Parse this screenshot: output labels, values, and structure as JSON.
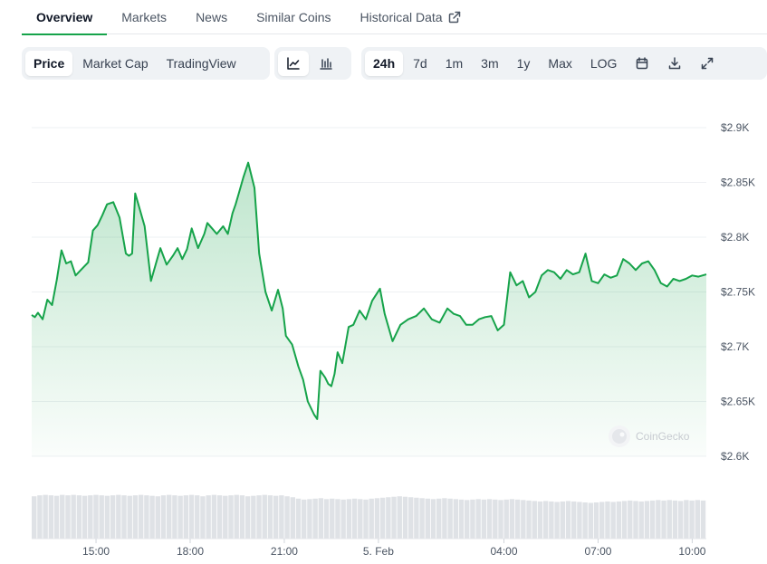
{
  "tabs": [
    {
      "label": "Overview",
      "active": true
    },
    {
      "label": "Markets"
    },
    {
      "label": "News"
    },
    {
      "label": "Similar Coins"
    },
    {
      "label": "Historical Data",
      "external_icon": "external-link-icon"
    }
  ],
  "toolbar": {
    "metric": [
      {
        "label": "Price",
        "active": true
      },
      {
        "label": "Market Cap"
      },
      {
        "label": "TradingView"
      }
    ],
    "chart_style": [
      {
        "icon": "line-chart-icon",
        "active": true
      },
      {
        "icon": "candlestick-chart-icon"
      }
    ],
    "ranges": [
      {
        "label": "24h",
        "active": true
      },
      {
        "label": "7d"
      },
      {
        "label": "1m"
      },
      {
        "label": "3m"
      },
      {
        "label": "1y"
      },
      {
        "label": "Max"
      },
      {
        "label": "LOG"
      }
    ],
    "actions": [
      {
        "icon": "calendar-icon"
      },
      {
        "icon": "download-icon"
      },
      {
        "icon": "fullscreen-icon"
      }
    ]
  },
  "watermark": "CoinGecko",
  "colors": {
    "line": "#16a34a",
    "fill_top": "#16a34a",
    "volume": "#d1d5db",
    "grid": "#eef0f3",
    "tab_underline": "#16a34a"
  },
  "chart_data": {
    "type": "line",
    "title": "",
    "xlabel": "",
    "ylabel": "",
    "ylim": [
      2.6,
      2.9
    ],
    "xlim": [
      12.95,
      34.45
    ],
    "y_tick_values": [
      2.6,
      2.65,
      2.7,
      2.75,
      2.8,
      2.85,
      2.9
    ],
    "y_tick_labels": [
      "$2.6K",
      "$2.65K",
      "$2.7K",
      "$2.75K",
      "$2.8K",
      "$2.85K",
      "$2.9K"
    ],
    "x_tick_values": [
      15,
      18,
      21,
      24,
      28,
      31,
      34
    ],
    "x_tick_labels": [
      "15:00",
      "18:00",
      "21:00",
      "5. Feb",
      "04:00",
      "07:00",
      "10:00"
    ],
    "grid": true,
    "fill": "area-gradient",
    "series": [
      {
        "x": [
          12.95,
          13.05,
          13.15,
          13.3,
          13.45,
          13.6,
          13.75,
          13.9,
          14.05,
          14.2,
          14.35,
          14.55,
          14.75,
          14.9,
          15.05,
          15.2,
          15.35,
          15.55,
          15.75,
          15.95,
          16.05,
          16.15,
          16.25,
          16.35,
          16.55,
          16.75,
          16.95,
          17.05,
          17.25,
          17.45,
          17.6,
          17.75,
          17.9,
          18.05,
          18.25,
          18.45,
          18.55,
          18.7,
          18.85,
          19.05,
          19.2,
          19.35,
          19.45,
          19.55,
          19.7,
          19.85,
          20.05,
          20.2,
          20.4,
          20.6,
          20.8,
          20.95,
          21.05,
          21.25,
          21.45,
          21.6,
          21.75,
          21.95,
          22.05,
          22.15,
          22.3,
          22.4,
          22.5,
          22.6,
          22.7,
          22.85,
          23.05,
          23.2,
          23.4,
          23.6,
          23.8,
          24.05,
          24.2,
          24.45,
          24.7,
          24.95,
          25.2,
          25.45,
          25.7,
          25.95,
          26.2,
          26.4,
          26.6,
          26.8,
          27.0,
          27.2,
          27.4,
          27.6,
          27.8,
          28.0,
          28.2,
          28.4,
          28.6,
          28.8,
          29.0,
          29.2,
          29.4,
          29.6,
          29.8,
          30.0,
          30.2,
          30.4,
          30.6,
          30.8,
          31.0,
          31.2,
          31.4,
          31.6,
          31.8,
          32.0,
          32.2,
          32.4,
          32.6,
          32.8,
          33.0,
          33.2,
          33.4,
          33.6,
          33.8,
          34.0,
          34.2,
          34.45
        ],
        "y": [
          2.729,
          2.727,
          2.731,
          2.725,
          2.743,
          2.738,
          2.761,
          2.788,
          2.776,
          2.778,
          2.765,
          2.771,
          2.777,
          2.806,
          2.811,
          2.82,
          2.83,
          2.832,
          2.818,
          2.785,
          2.783,
          2.785,
          2.84,
          2.83,
          2.81,
          2.76,
          2.78,
          2.79,
          2.775,
          2.783,
          2.79,
          2.78,
          2.789,
          2.808,
          2.79,
          2.803,
          2.813,
          2.808,
          2.803,
          2.81,
          2.803,
          2.822,
          2.83,
          2.84,
          2.855,
          2.868,
          2.845,
          2.785,
          2.75,
          2.733,
          2.752,
          2.735,
          2.71,
          2.702,
          2.682,
          2.67,
          2.65,
          2.638,
          2.634,
          2.678,
          2.672,
          2.666,
          2.664,
          2.675,
          2.695,
          2.685,
          2.718,
          2.72,
          2.733,
          2.725,
          2.742,
          2.753,
          2.73,
          2.705,
          2.72,
          2.725,
          2.728,
          2.735,
          2.725,
          2.722,
          2.735,
          2.73,
          2.728,
          2.72,
          2.72,
          2.725,
          2.727,
          2.728,
          2.715,
          2.72,
          2.768,
          2.756,
          2.76,
          2.745,
          2.75,
          2.765,
          2.77,
          2.768,
          2.762,
          2.77,
          2.766,
          2.768,
          2.785,
          2.76,
          2.758,
          2.766,
          2.763,
          2.765,
          2.78,
          2.776,
          2.77,
          2.776,
          2.778,
          2.77,
          2.758,
          2.755,
          2.762,
          2.76,
          2.762,
          2.765,
          2.764,
          2.766
        ]
      }
    ],
    "volume_relative": [
      0.9,
      0.92,
      0.93,
      0.92,
      0.91,
      0.93,
      0.92,
      0.93,
      0.92,
      0.91,
      0.92,
      0.93,
      0.92,
      0.91,
      0.92,
      0.93,
      0.92,
      0.91,
      0.92,
      0.93,
      0.92,
      0.91,
      0.9,
      0.92,
      0.93,
      0.92,
      0.91,
      0.92,
      0.93,
      0.92,
      0.9,
      0.92,
      0.93,
      0.92,
      0.91,
      0.92,
      0.93,
      0.92,
      0.9,
      0.91,
      0.92,
      0.93,
      0.92,
      0.91,
      0.92,
      0.9,
      0.88,
      0.85,
      0.83,
      0.84,
      0.85,
      0.86,
      0.84,
      0.85,
      0.84,
      0.83,
      0.84,
      0.85,
      0.84,
      0.83,
      0.85,
      0.86,
      0.87,
      0.88,
      0.89,
      0.9,
      0.89,
      0.88,
      0.87,
      0.86,
      0.85,
      0.84,
      0.85,
      0.86,
      0.85,
      0.84,
      0.83,
      0.82,
      0.83,
      0.84,
      0.83,
      0.84,
      0.83,
      0.82,
      0.83,
      0.84,
      0.83,
      0.82,
      0.81,
      0.8,
      0.79,
      0.8,
      0.79,
      0.78,
      0.79,
      0.8,
      0.79,
      0.78,
      0.77,
      0.76,
      0.77,
      0.78,
      0.79,
      0.78,
      0.79,
      0.8,
      0.81,
      0.8,
      0.79,
      0.8,
      0.81,
      0.82,
      0.81,
      0.82,
      0.81,
      0.8,
      0.82,
      0.81,
      0.82,
      0.81
    ]
  }
}
